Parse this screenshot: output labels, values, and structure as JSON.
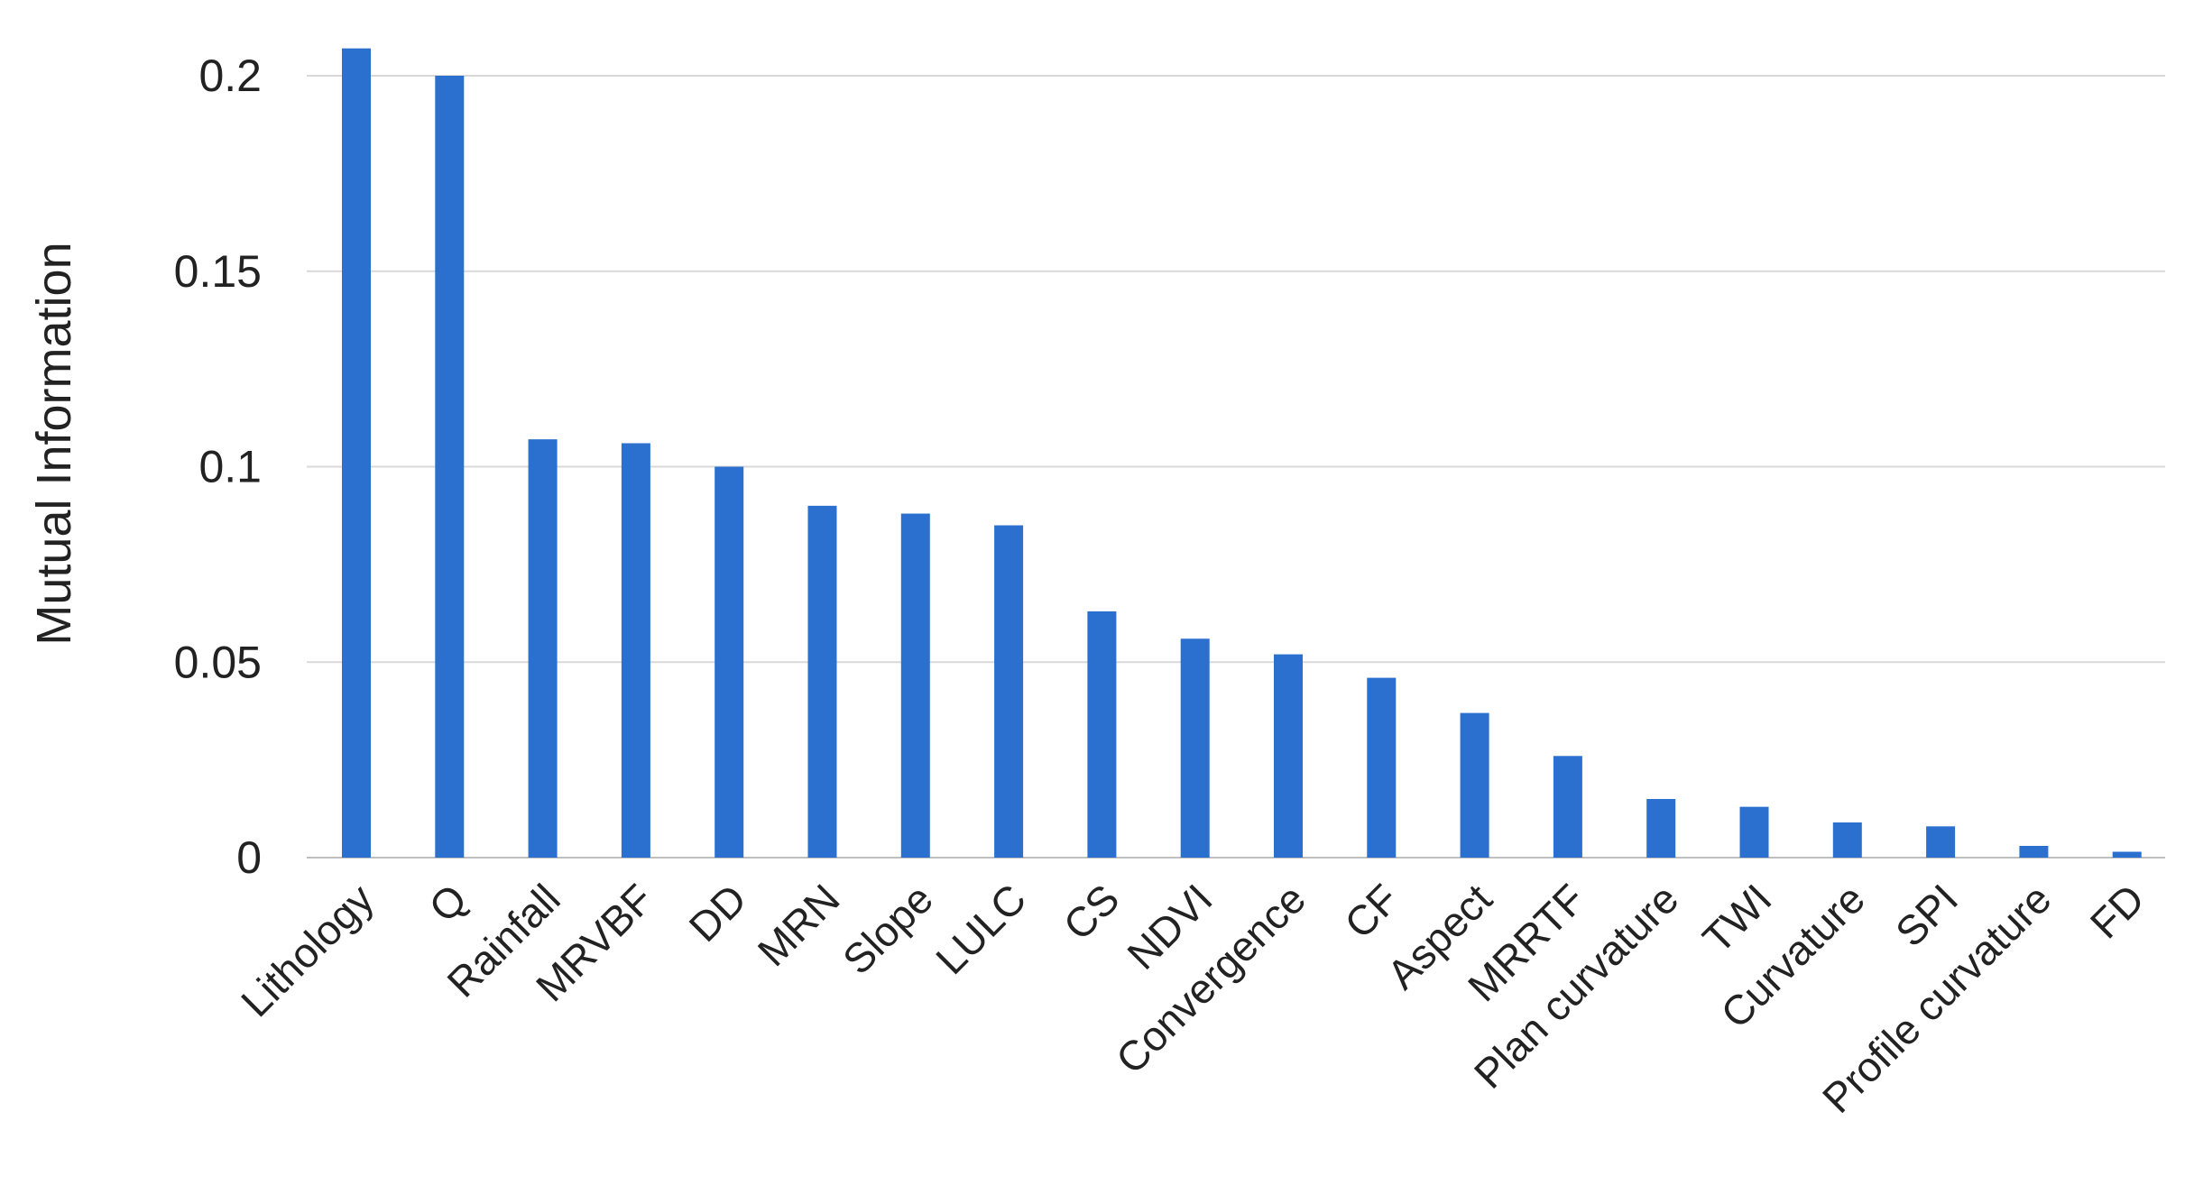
{
  "chart_data": {
    "type": "bar",
    "ylabel": "Mutual Information",
    "xlabel": "",
    "ylim": [
      0,
      0.21
    ],
    "yticks": [
      "0",
      "0.05",
      "0.1",
      "0.15",
      "0.2"
    ],
    "ytick_values": [
      0,
      0.05,
      0.1,
      0.15,
      0.2
    ],
    "grid": true,
    "legend": "none",
    "bar_color": "#2b6fcf",
    "categories": [
      "Lithology",
      "Q",
      "Rainfall",
      "MRVBF",
      "DD",
      "MRN",
      "Slope",
      "LULC",
      "CS",
      "NDVI",
      "Convergence",
      "CF",
      "Aspect",
      "MRRTF",
      "Plan curvature",
      "TWI",
      "Curvature",
      "SPI",
      "Profile curvature",
      "FD"
    ],
    "values": [
      0.207,
      0.2,
      0.107,
      0.106,
      0.1,
      0.09,
      0.088,
      0.085,
      0.063,
      0.056,
      0.052,
      0.046,
      0.037,
      0.026,
      0.015,
      0.013,
      0.009,
      0.008,
      0.003,
      0.0015
    ]
  }
}
